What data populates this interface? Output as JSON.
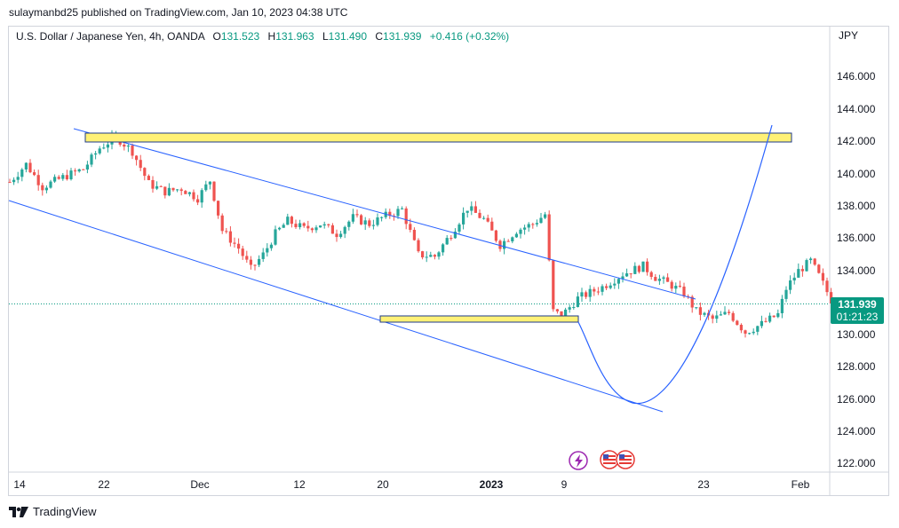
{
  "header": {
    "published": "sulaymanbd25 published on TradingView.com, Jan 10, 2023 04:38 UTC"
  },
  "legend": {
    "symbol": "U.S. Dollar / Japanese Yen, 4h, OANDA",
    "open_label": "O",
    "open": "131.523",
    "high_label": "H",
    "high": "131.963",
    "low_label": "L",
    "low": "131.490",
    "close_label": "C",
    "close": "131.939",
    "change": "+0.416 (+0.32%)"
  },
  "price_badge": {
    "price": "131.939",
    "countdown": "01:21:23"
  },
  "footer": {
    "brand": "TradingView"
  },
  "colors": {
    "up": "#26a69a",
    "down": "#ef5350",
    "trendline": "#2962ff",
    "zone_fill": "#fff176",
    "zone_border": "#1e3a8a",
    "last_price": "#089981"
  },
  "icons": [
    "tradingview-logo-icon",
    "lightning-icon",
    "us-flag-icon"
  ],
  "chart_data": {
    "type": "candlestick",
    "y_axis": {
      "currency": "JPY",
      "ticks": [
        "146.000",
        "144.000",
        "142.000",
        "140.000",
        "138.000",
        "136.000",
        "134.000",
        "132.000",
        "130.000",
        "128.000",
        "126.000",
        "124.000",
        "122.000"
      ],
      "ylim": [
        121.3,
        147.2
      ]
    },
    "x_axis": {
      "ticks": [
        "14",
        "22",
        "Dec",
        "12",
        "20",
        "2023",
        "9",
        "23",
        "Feb"
      ]
    },
    "last_price": 131.939,
    "price_path": [
      [
        0,
        139.5
      ],
      [
        4,
        140.6
      ],
      [
        8,
        139.2
      ],
      [
        14,
        139.9
      ],
      [
        18,
        140.3
      ],
      [
        22,
        141.6
      ],
      [
        26,
        142.3
      ],
      [
        30,
        141.4
      ],
      [
        34,
        139.4
      ],
      [
        38,
        138.9
      ],
      [
        42,
        139.1
      ],
      [
        46,
        138.5
      ],
      [
        49,
        139.6
      ],
      [
        52,
        136.5
      ],
      [
        56,
        135.4
      ],
      [
        59,
        134.1
      ],
      [
        62,
        135.0
      ],
      [
        65,
        136.3
      ],
      [
        68,
        137.1
      ],
      [
        72,
        136.6
      ],
      [
        76,
        136.9
      ],
      [
        80,
        136.3
      ],
      [
        84,
        137.3
      ],
      [
        88,
        136.9
      ],
      [
        92,
        137.4
      ],
      [
        96,
        137.8
      ],
      [
        100,
        135.0
      ],
      [
        104,
        134.9
      ],
      [
        108,
        136.3
      ],
      [
        112,
        137.9
      ],
      [
        116,
        137.2
      ],
      [
        120,
        135.6
      ],
      [
        124,
        136.5
      ],
      [
        128,
        136.9
      ],
      [
        131,
        137.5
      ],
      [
        133,
        131.5
      ],
      [
        135,
        131.2
      ],
      [
        139,
        132.3
      ],
      [
        145,
        133.0
      ],
      [
        150,
        133.8
      ],
      [
        155,
        134.3
      ],
      [
        158,
        133.6
      ],
      [
        162,
        133.1
      ],
      [
        165,
        132.6
      ],
      [
        168,
        131.5
      ],
      [
        172,
        131.0
      ],
      [
        176,
        131.4
      ],
      [
        180,
        130.2
      ],
      [
        184,
        130.7
      ],
      [
        188,
        131.3
      ],
      [
        190,
        132.9
      ],
      [
        193,
        134.0
      ],
      [
        196,
        134.6
      ],
      [
        198,
        133.7
      ],
      [
        201,
        132.2
      ],
      [
        204,
        131.8
      ],
      [
        208,
        131.9
      ]
    ],
    "drawings": {
      "resistance_zone": {
        "from_price": 142.5,
        "to_price": 142.0
      },
      "support_zone": {
        "from_price": 131.4,
        "to_price": 130.9
      }
    }
  }
}
